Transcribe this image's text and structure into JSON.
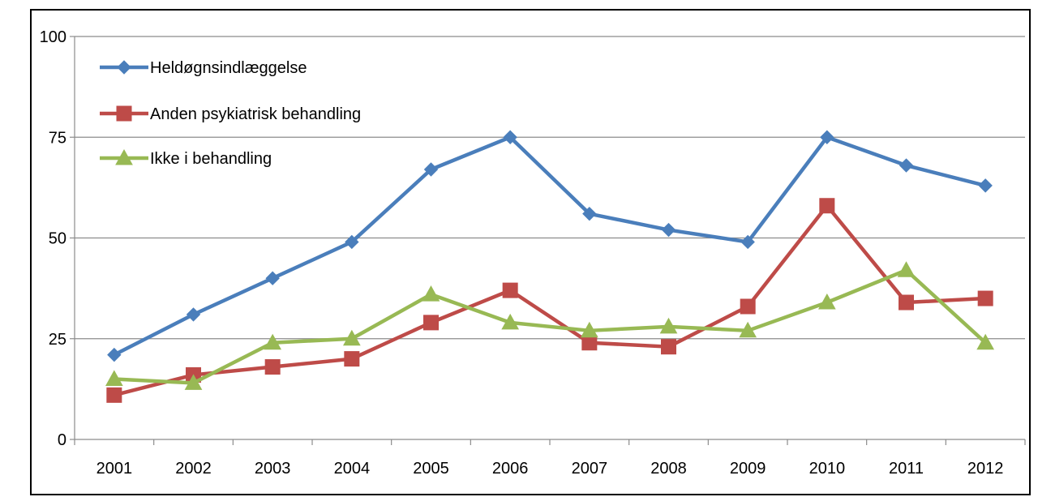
{
  "chart_data": {
    "type": "line",
    "title": "",
    "xlabel": "",
    "ylabel": "",
    "categories": [
      "2001",
      "2002",
      "2003",
      "2004",
      "2005",
      "2006",
      "2007",
      "2008",
      "2009",
      "2010",
      "2011",
      "2012"
    ],
    "ylim": [
      0,
      100
    ],
    "yticks": [
      "0",
      "25",
      "50",
      "75",
      "100"
    ],
    "grid": true,
    "legend_position": "top-left",
    "series": [
      {
        "name": "Heldøgnsindlæggelse",
        "color": "#4a7ebb",
        "marker": "diamond",
        "values": [
          21,
          31,
          40,
          49,
          67,
          75,
          56,
          52,
          49,
          75,
          68,
          63
        ]
      },
      {
        "name": "Anden psykiatrisk behandling",
        "color": "#be4b48",
        "marker": "square",
        "values": [
          11,
          16,
          18,
          20,
          29,
          37,
          24,
          23,
          33,
          58,
          34,
          35
        ]
      },
      {
        "name": "Ikke i behandling",
        "color": "#98b954",
        "marker": "triangle",
        "values": [
          15,
          14,
          24,
          25,
          36,
          29,
          27,
          28,
          27,
          34,
          42,
          24
        ]
      }
    ]
  }
}
